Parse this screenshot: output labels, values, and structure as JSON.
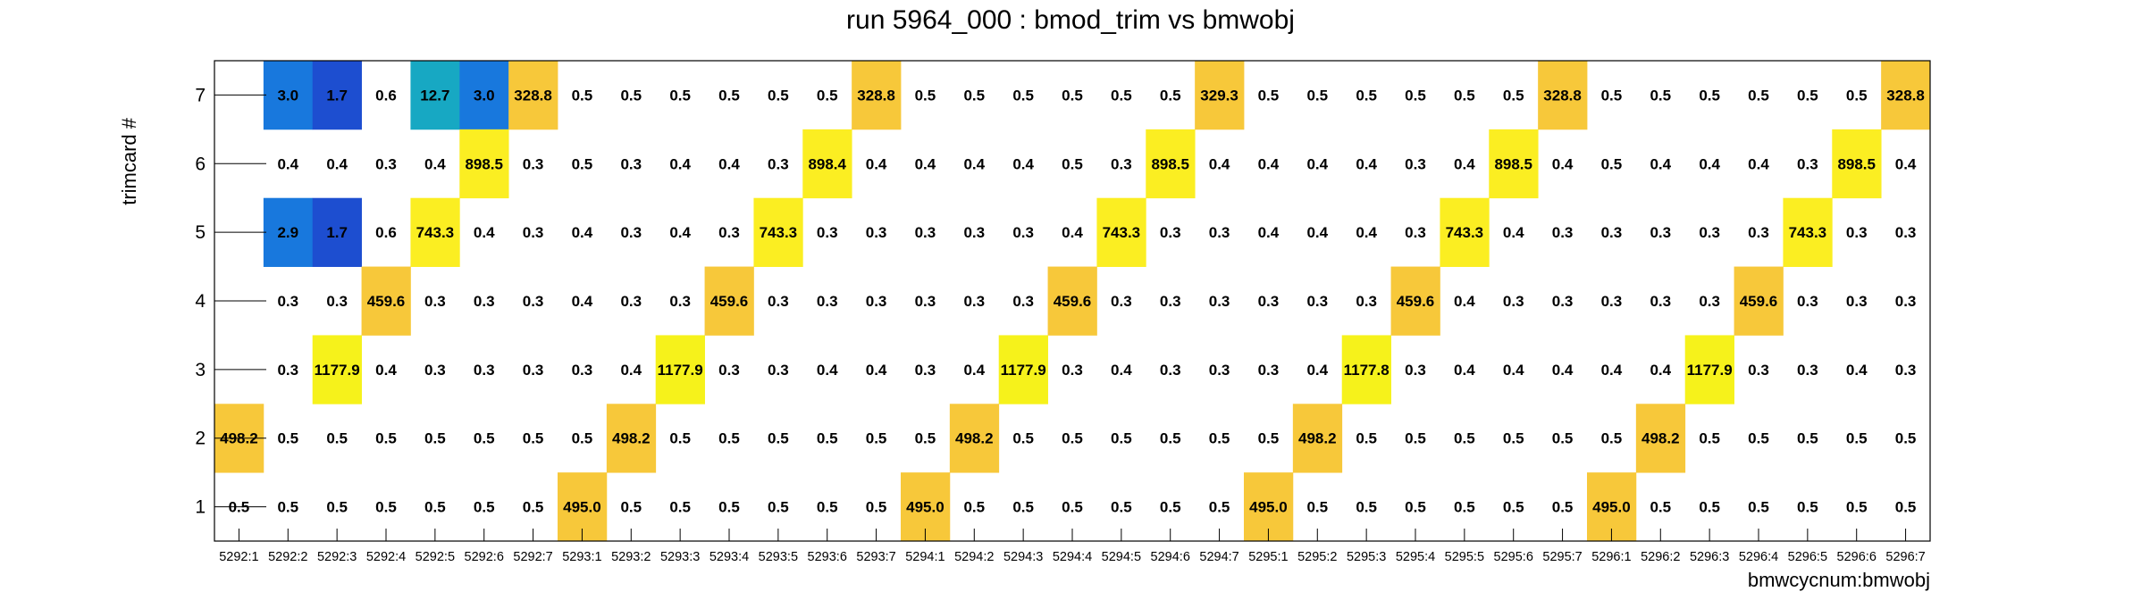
{
  "chart_data": {
    "type": "heatmap",
    "title": "run 5964_000 : bmod_trim vs bmwobj",
    "xlabel": "bmwcycnum:bmwobj",
    "ylabel": "trimcard #",
    "x_categories": [
      "5292:1",
      "5292:2",
      "5292:3",
      "5292:4",
      "5292:5",
      "5292:6",
      "5292:7",
      "5293:1",
      "5293:2",
      "5293:3",
      "5293:4",
      "5293:5",
      "5293:6",
      "5293:7",
      "5294:1",
      "5294:2",
      "5294:3",
      "5294:4",
      "5294:5",
      "5294:6",
      "5294:7",
      "5295:1",
      "5295:2",
      "5295:3",
      "5295:4",
      "5295:5",
      "5295:6",
      "5295:7",
      "5296:1",
      "5296:2",
      "5296:3",
      "5296:4",
      "5296:5",
      "5296:6",
      "5296:7"
    ],
    "y_categories": [
      "1",
      "2",
      "3",
      "4",
      "5",
      "6",
      "7"
    ],
    "ylim": [
      0.5,
      7.5
    ],
    "colors": {
      "high": "#f7c83a",
      "mid_high": "#fbee22",
      "very_high": "#f6f21b",
      "low_blue": "#1878dd",
      "lower_blue": "#1d4ed0",
      "teal": "#17a8c3"
    },
    "rows": [
      {
        "y": "7",
        "values": [
          "",
          "3.0",
          "1.7",
          "0.6",
          "12.7",
          "3.0",
          "328.8",
          "0.5",
          "0.5",
          "0.5",
          "0.5",
          "0.5",
          "0.5",
          "328.8",
          "0.5",
          "0.5",
          "0.5",
          "0.5",
          "0.5",
          "0.5",
          "329.3",
          "0.5",
          "0.5",
          "0.5",
          "0.5",
          "0.5",
          "0.5",
          "328.8",
          "0.5",
          "0.5",
          "0.5",
          "0.5",
          "0.5",
          "0.5",
          "328.8"
        ]
      },
      {
        "y": "6",
        "values": [
          "",
          "0.4",
          "0.4",
          "0.3",
          "0.4",
          "898.5",
          "0.3",
          "0.5",
          "0.3",
          "0.4",
          "0.4",
          "0.3",
          "898.4",
          "0.4",
          "0.4",
          "0.4",
          "0.4",
          "0.5",
          "0.3",
          "898.5",
          "0.4",
          "0.4",
          "0.4",
          "0.4",
          "0.3",
          "0.4",
          "898.5",
          "0.4",
          "0.5",
          "0.4",
          "0.4",
          "0.4",
          "0.3",
          "898.5",
          "0.4"
        ]
      },
      {
        "y": "5",
        "values": [
          "",
          "2.9",
          "1.7",
          "0.6",
          "743.3",
          "0.4",
          "0.3",
          "0.4",
          "0.3",
          "0.4",
          "0.3",
          "743.3",
          "0.3",
          "0.3",
          "0.3",
          "0.3",
          "0.3",
          "0.4",
          "743.3",
          "0.3",
          "0.3",
          "0.4",
          "0.4",
          "0.4",
          "0.3",
          "743.3",
          "0.4",
          "0.3",
          "0.3",
          "0.3",
          "0.3",
          "0.3",
          "743.3",
          "0.3",
          "0.3"
        ]
      },
      {
        "y": "4",
        "values": [
          "",
          "0.3",
          "0.3",
          "459.6",
          "0.3",
          "0.3",
          "0.3",
          "0.4",
          "0.3",
          "0.3",
          "459.6",
          "0.3",
          "0.3",
          "0.3",
          "0.3",
          "0.3",
          "0.3",
          "459.6",
          "0.3",
          "0.3",
          "0.3",
          "0.3",
          "0.3",
          "0.3",
          "459.6",
          "0.4",
          "0.3",
          "0.3",
          "0.3",
          "0.3",
          "0.3",
          "459.6",
          "0.3",
          "0.3",
          "0.3"
        ]
      },
      {
        "y": "3",
        "values": [
          "",
          "0.3",
          "1177.9",
          "0.4",
          "0.3",
          "0.3",
          "0.3",
          "0.3",
          "0.4",
          "1177.9",
          "0.3",
          "0.3",
          "0.4",
          "0.4",
          "0.3",
          "0.4",
          "1177.9",
          "0.3",
          "0.4",
          "0.3",
          "0.3",
          "0.3",
          "0.4",
          "1177.8",
          "0.3",
          "0.4",
          "0.4",
          "0.4",
          "0.4",
          "0.4",
          "1177.9",
          "0.3",
          "0.3",
          "0.4",
          "0.3"
        ]
      },
      {
        "y": "2",
        "values": [
          "498.2",
          "0.5",
          "0.5",
          "0.5",
          "0.5",
          "0.5",
          "0.5",
          "0.5",
          "498.2",
          "0.5",
          "0.5",
          "0.5",
          "0.5",
          "0.5",
          "0.5",
          "498.2",
          "0.5",
          "0.5",
          "0.5",
          "0.5",
          "0.5",
          "0.5",
          "498.2",
          "0.5",
          "0.5",
          "0.5",
          "0.5",
          "0.5",
          "0.5",
          "498.2",
          "0.5",
          "0.5",
          "0.5",
          "0.5",
          "0.5"
        ]
      },
      {
        "y": "1",
        "values": [
          "0.5",
          "0.5",
          "0.5",
          "0.5",
          "0.5",
          "0.5",
          "0.5",
          "495.0",
          "0.5",
          "0.5",
          "0.5",
          "0.5",
          "0.5",
          "0.5",
          "495.0",
          "0.5",
          "0.5",
          "0.5",
          "0.5",
          "0.5",
          "0.5",
          "495.0",
          "0.5",
          "0.5",
          "0.5",
          "0.5",
          "0.5",
          "0.5",
          "495.0",
          "0.5",
          "0.5",
          "0.5",
          "0.5",
          "0.5",
          "0.5"
        ]
      }
    ]
  }
}
